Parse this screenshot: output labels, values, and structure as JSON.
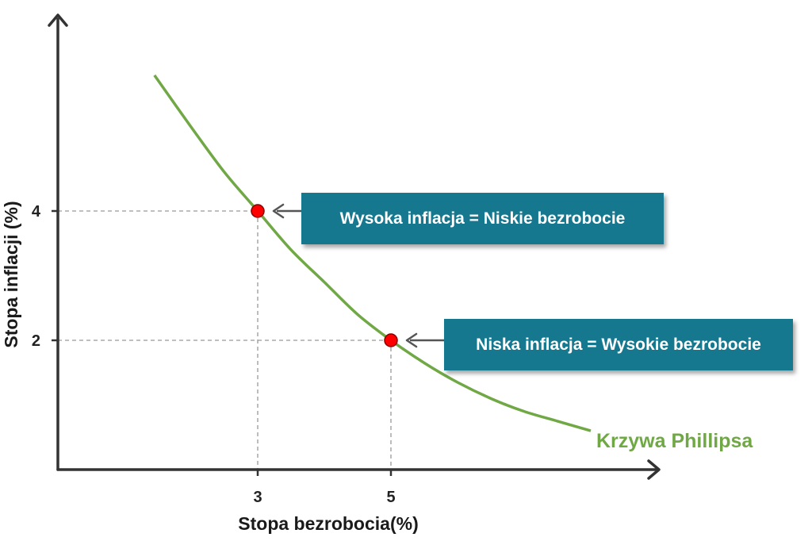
{
  "colors": {
    "curve": "#70A845",
    "point_fill": "#FF0000",
    "point_stroke": "#8B0000",
    "callout_bg": "#16788F",
    "axis": "#333333",
    "guide": "#999999"
  },
  "chart_data": {
    "type": "line",
    "title": "",
    "xlabel": "Stopa bezrobocia(%)",
    "ylabel": "Stopa inflacji (%)",
    "x_ticks": [
      3,
      5
    ],
    "y_ticks": [
      4,
      2
    ],
    "series": [
      {
        "name": "Krzywa Phillipsa",
        "x": [
          1.45,
          2.0,
          2.5,
          3.0,
          3.5,
          4.0,
          4.5,
          5.0,
          5.5,
          6.0,
          6.5,
          7.0,
          7.5,
          8.0
        ],
        "y": [
          6.1,
          5.3,
          4.6,
          4.0,
          3.4,
          2.9,
          2.4,
          2.0,
          1.65,
          1.35,
          1.1,
          0.9,
          0.75,
          0.6
        ]
      }
    ],
    "highlighted_points": [
      {
        "x": 3,
        "y": 4,
        "label": "Wysoka inflacja = Niskie bezrobocie"
      },
      {
        "x": 5,
        "y": 2,
        "label": "Niska inflacja = Wysokie bezrobocie"
      }
    ],
    "grid": false,
    "legend": "none"
  }
}
